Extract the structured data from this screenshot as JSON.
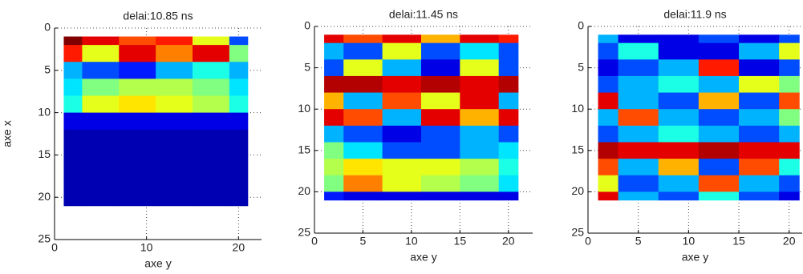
{
  "chart_data": [
    {
      "type": "heatmap",
      "title": "delai:10.85 ns",
      "xlabel": "axe y",
      "ylabel": "axe x",
      "xlim": [
        0,
        22.5
      ],
      "xticks": [
        0,
        10,
        20
      ],
      "ylim": [
        0,
        25
      ],
      "yticks": [
        0,
        5,
        10,
        15,
        20,
        25
      ],
      "y_reversed": true,
      "grid": true,
      "colormap": "jet",
      "clim": [
        0,
        1
      ],
      "rows": [
        1,
        3,
        5,
        7,
        9,
        11,
        13,
        15,
        17,
        19,
        21
      ],
      "cols": [
        1,
        5,
        9,
        13,
        17,
        21
      ],
      "z": [
        [
          1,
          0.9,
          0.8,
          0.85,
          0.6,
          0.2
        ],
        [
          0.85,
          0.6,
          0.9,
          0.75,
          0.9,
          0.5
        ],
        [
          0.3,
          0.2,
          0.15,
          0.3,
          0.4,
          0.3
        ],
        [
          0.35,
          0.5,
          0.55,
          0.55,
          0.5,
          0.35
        ],
        [
          0.4,
          0.6,
          0.65,
          0.6,
          0.55,
          0.4
        ],
        [
          0.1,
          0.1,
          0.1,
          0.1,
          0.1,
          0.1
        ],
        [
          0.05,
          0.05,
          0.05,
          0.05,
          0.05,
          0.05
        ],
        [
          0.05,
          0.05,
          0.05,
          0.05,
          0.05,
          0.05
        ],
        [
          0.05,
          0.05,
          0.05,
          0.05,
          0.05,
          0.05
        ],
        [
          0.05,
          0.05,
          0.05,
          0.05,
          0.05,
          0.05
        ],
        [
          0.05,
          0.05,
          0.05,
          0.05,
          0.05,
          0.05
        ]
      ]
    },
    {
      "type": "heatmap",
      "title": "delai:11.45 ns",
      "xlabel": "axe y",
      "xlim": [
        0,
        22.5
      ],
      "xticks": [
        0,
        5,
        10,
        15,
        20
      ],
      "ylim": [
        0,
        25
      ],
      "yticks": [
        0,
        5,
        10,
        15,
        20,
        25
      ],
      "y_reversed": true,
      "grid": true,
      "colormap": "jet",
      "clim": [
        0,
        1
      ],
      "rows": [
        1,
        3,
        5,
        7,
        9,
        11,
        13,
        15,
        17,
        19,
        21
      ],
      "cols": [
        1,
        5,
        9,
        13,
        17,
        21
      ],
      "z": [
        [
          0.9,
          0.8,
          0.9,
          0.7,
          0.9,
          0.85
        ],
        [
          0.3,
          0.2,
          0.6,
          0.2,
          0.35,
          0.2
        ],
        [
          0.2,
          0.6,
          0.3,
          0.1,
          0.6,
          0.2
        ],
        [
          0.95,
          0.95,
          0.9,
          0.95,
          0.9,
          0.95
        ],
        [
          0.7,
          0.3,
          0.8,
          0.6,
          0.9,
          0.3
        ],
        [
          0.9,
          0.8,
          0.3,
          0.9,
          0.7,
          0.9
        ],
        [
          0.3,
          0.2,
          0.1,
          0.2,
          0.3,
          0.2
        ],
        [
          0.5,
          0.35,
          0.2,
          0.2,
          0.3,
          0.35
        ],
        [
          0.55,
          0.65,
          0.6,
          0.6,
          0.55,
          0.4
        ],
        [
          0.5,
          0.75,
          0.6,
          0.55,
          0.5,
          0.35
        ],
        [
          0.15,
          0.1,
          0.1,
          0.1,
          0.1,
          0.1
        ]
      ]
    },
    {
      "type": "heatmap",
      "title": "delai:11.9 ns",
      "xlabel": "axe y",
      "xlim": [
        0,
        21.3
      ],
      "xticks": [
        0,
        5,
        10,
        15,
        20
      ],
      "ylim": [
        0,
        25
      ],
      "yticks": [
        0,
        5,
        10,
        15,
        20,
        25
      ],
      "y_reversed": true,
      "grid": true,
      "colormap": "jet",
      "clim": [
        0,
        1
      ],
      "rows": [
        1,
        3,
        5,
        7,
        9,
        11,
        13,
        15,
        17,
        19,
        21
      ],
      "cols": [
        1,
        5,
        9,
        13,
        17,
        21
      ],
      "z": [
        [
          0.3,
          0.1,
          0.1,
          0.2,
          0.1,
          0.2
        ],
        [
          0.2,
          0.4,
          0.1,
          0.1,
          0.3,
          0.6
        ],
        [
          0.1,
          0.2,
          0.3,
          0.85,
          0.1,
          0.2
        ],
        [
          0.2,
          0.3,
          0.4,
          0.3,
          0.6,
          0.5
        ],
        [
          0.9,
          0.3,
          0.2,
          0.7,
          0.2,
          0.8
        ],
        [
          0.3,
          0.8,
          0.3,
          0.2,
          0.3,
          0.5
        ],
        [
          0.2,
          0.3,
          0.4,
          0.3,
          0.2,
          0.3
        ],
        [
          0.95,
          0.9,
          0.9,
          0.95,
          0.9,
          0.9
        ],
        [
          0.8,
          0.3,
          0.7,
          0.2,
          0.8,
          0.4
        ],
        [
          0.6,
          0.2,
          0.3,
          0.8,
          0.3,
          0.2
        ],
        [
          0.9,
          0.3,
          0.2,
          0.4,
          0.2,
          0.1
        ]
      ]
    }
  ]
}
